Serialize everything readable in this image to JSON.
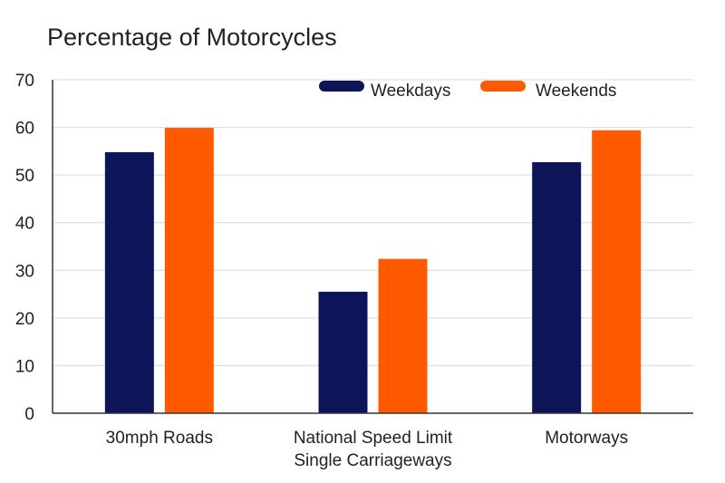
{
  "chart_data": {
    "type": "bar",
    "title": "Percentage of Motorcycles",
    "xlabel": "",
    "ylabel": "",
    "categories": [
      [
        "30mph Roads"
      ],
      [
        "National Speed Limit",
        "Single Carriageways"
      ],
      [
        "Motorways"
      ]
    ],
    "series": [
      {
        "name": "Weekdays",
        "values": [
          54.8,
          25.5,
          52.7
        ],
        "color": "#0d1458"
      },
      {
        "name": "Weekends",
        "values": [
          59.9,
          32.4,
          59.4
        ],
        "color": "#ff5a00"
      }
    ],
    "ylim": [
      0,
      70
    ],
    "yticks": [
      0,
      10,
      20,
      30,
      40,
      50,
      60,
      70
    ],
    "grid": true,
    "legend_position": "top-right"
  }
}
